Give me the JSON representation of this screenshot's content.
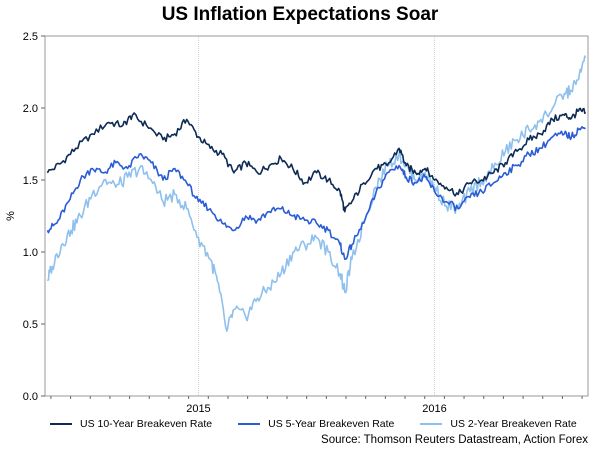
{
  "chart_data": {
    "type": "line",
    "title": "US Inflation Expectations Soar",
    "ylabel": "%",
    "xlabel": "",
    "ylim": [
      0.0,
      2.5
    ],
    "yticks": [
      "0.0",
      "0.5",
      "1.0",
      "1.5",
      "2.0",
      "2.5"
    ],
    "xrange": [
      2014.35,
      2016.65
    ],
    "xticks": [
      {
        "label": "2015",
        "pos": 2015.0
      },
      {
        "label": "2016",
        "pos": 2016.0
      }
    ],
    "gridlines": "vertical at year boundaries",
    "source": "Source: Thomson Reuters Datastream, Action Forex",
    "series": [
      {
        "name": "US 10-Year Breakeven Rate",
        "color": "#0d2b55",
        "points": [
          [
            2014.36,
            1.55
          ],
          [
            2014.42,
            1.62
          ],
          [
            2014.48,
            1.72
          ],
          [
            2014.55,
            1.82
          ],
          [
            2014.62,
            1.9
          ],
          [
            2014.68,
            1.88
          ],
          [
            2014.72,
            1.95
          ],
          [
            2014.78,
            1.88
          ],
          [
            2014.85,
            1.78
          ],
          [
            2014.9,
            1.82
          ],
          [
            2014.95,
            1.92
          ],
          [
            2015.0,
            1.8
          ],
          [
            2015.05,
            1.72
          ],
          [
            2015.1,
            1.68
          ],
          [
            2015.15,
            1.55
          ],
          [
            2015.2,
            1.62
          ],
          [
            2015.25,
            1.55
          ],
          [
            2015.3,
            1.6
          ],
          [
            2015.35,
            1.65
          ],
          [
            2015.4,
            1.58
          ],
          [
            2015.45,
            1.48
          ],
          [
            2015.5,
            1.55
          ],
          [
            2015.55,
            1.5
          ],
          [
            2015.6,
            1.42
          ],
          [
            2015.62,
            1.28
          ],
          [
            2015.65,
            1.35
          ],
          [
            2015.7,
            1.48
          ],
          [
            2015.75,
            1.58
          ],
          [
            2015.8,
            1.6
          ],
          [
            2015.85,
            1.72
          ],
          [
            2015.88,
            1.6
          ],
          [
            2015.92,
            1.55
          ],
          [
            2015.96,
            1.58
          ],
          [
            2016.0,
            1.5
          ],
          [
            2016.05,
            1.45
          ],
          [
            2016.1,
            1.4
          ],
          [
            2016.15,
            1.48
          ],
          [
            2016.2,
            1.5
          ],
          [
            2016.25,
            1.55
          ],
          [
            2016.3,
            1.62
          ],
          [
            2016.35,
            1.7
          ],
          [
            2016.4,
            1.78
          ],
          [
            2016.45,
            1.82
          ],
          [
            2016.5,
            1.92
          ],
          [
            2016.55,
            1.95
          ],
          [
            2016.58,
            1.93
          ],
          [
            2016.61,
            1.98
          ],
          [
            2016.64,
            1.97
          ]
        ]
      },
      {
        "name": "US 5-Year Breakeven Rate",
        "color": "#2a5cd6",
        "points": [
          [
            2014.36,
            1.15
          ],
          [
            2014.4,
            1.2
          ],
          [
            2014.45,
            1.35
          ],
          [
            2014.5,
            1.5
          ],
          [
            2014.55,
            1.58
          ],
          [
            2014.6,
            1.55
          ],
          [
            2014.65,
            1.62
          ],
          [
            2014.7,
            1.58
          ],
          [
            2014.75,
            1.68
          ],
          [
            2014.8,
            1.62
          ],
          [
            2014.85,
            1.5
          ],
          [
            2014.9,
            1.58
          ],
          [
            2014.95,
            1.48
          ],
          [
            2015.0,
            1.35
          ],
          [
            2015.05,
            1.3
          ],
          [
            2015.1,
            1.2
          ],
          [
            2015.15,
            1.15
          ],
          [
            2015.2,
            1.25
          ],
          [
            2015.25,
            1.22
          ],
          [
            2015.3,
            1.28
          ],
          [
            2015.35,
            1.3
          ],
          [
            2015.4,
            1.25
          ],
          [
            2015.45,
            1.22
          ],
          [
            2015.5,
            1.2
          ],
          [
            2015.55,
            1.15
          ],
          [
            2015.6,
            1.05
          ],
          [
            2015.62,
            0.95
          ],
          [
            2015.65,
            1.05
          ],
          [
            2015.7,
            1.2
          ],
          [
            2015.75,
            1.4
          ],
          [
            2015.8,
            1.55
          ],
          [
            2015.85,
            1.6
          ],
          [
            2015.88,
            1.52
          ],
          [
            2015.92,
            1.48
          ],
          [
            2015.96,
            1.52
          ],
          [
            2016.0,
            1.42
          ],
          [
            2016.05,
            1.35
          ],
          [
            2016.1,
            1.3
          ],
          [
            2016.15,
            1.38
          ],
          [
            2016.2,
            1.42
          ],
          [
            2016.25,
            1.48
          ],
          [
            2016.3,
            1.55
          ],
          [
            2016.35,
            1.6
          ],
          [
            2016.4,
            1.68
          ],
          [
            2016.45,
            1.72
          ],
          [
            2016.5,
            1.8
          ],
          [
            2016.55,
            1.82
          ],
          [
            2016.58,
            1.8
          ],
          [
            2016.61,
            1.85
          ],
          [
            2016.64,
            1.86
          ]
        ]
      },
      {
        "name": "US 2-Year Breakeven Rate",
        "color": "#8fc0ee",
        "points": [
          [
            2014.36,
            0.8
          ],
          [
            2014.38,
            0.9
          ],
          [
            2014.42,
            1.05
          ],
          [
            2014.46,
            1.15
          ],
          [
            2014.5,
            1.25
          ],
          [
            2014.55,
            1.4
          ],
          [
            2014.6,
            1.5
          ],
          [
            2014.65,
            1.45
          ],
          [
            2014.7,
            1.52
          ],
          [
            2014.75,
            1.58
          ],
          [
            2014.8,
            1.5
          ],
          [
            2014.85,
            1.35
          ],
          [
            2014.9,
            1.4
          ],
          [
            2014.95,
            1.3
          ],
          [
            2015.0,
            1.1
          ],
          [
            2015.05,
            0.95
          ],
          [
            2015.08,
            0.8
          ],
          [
            2015.12,
            0.45
          ],
          [
            2015.15,
            0.6
          ],
          [
            2015.2,
            0.55
          ],
          [
            2015.25,
            0.68
          ],
          [
            2015.3,
            0.75
          ],
          [
            2015.35,
            0.85
          ],
          [
            2015.4,
            1.0
          ],
          [
            2015.45,
            1.05
          ],
          [
            2015.5,
            1.1
          ],
          [
            2015.55,
            1.0
          ],
          [
            2015.6,
            0.85
          ],
          [
            2015.62,
            0.72
          ],
          [
            2015.65,
            0.95
          ],
          [
            2015.7,
            1.2
          ],
          [
            2015.75,
            1.45
          ],
          [
            2015.8,
            1.6
          ],
          [
            2015.85,
            1.68
          ],
          [
            2015.88,
            1.6
          ],
          [
            2015.92,
            1.5
          ],
          [
            2015.96,
            1.55
          ],
          [
            2016.0,
            1.45
          ],
          [
            2016.05,
            1.32
          ],
          [
            2016.1,
            1.3
          ],
          [
            2016.15,
            1.42
          ],
          [
            2016.2,
            1.5
          ],
          [
            2016.25,
            1.58
          ],
          [
            2016.3,
            1.7
          ],
          [
            2016.35,
            1.78
          ],
          [
            2016.4,
            1.85
          ],
          [
            2016.45,
            1.92
          ],
          [
            2016.5,
            2.0
          ],
          [
            2016.55,
            2.1
          ],
          [
            2016.58,
            2.12
          ],
          [
            2016.61,
            2.2
          ],
          [
            2016.64,
            2.35
          ]
        ]
      }
    ]
  }
}
